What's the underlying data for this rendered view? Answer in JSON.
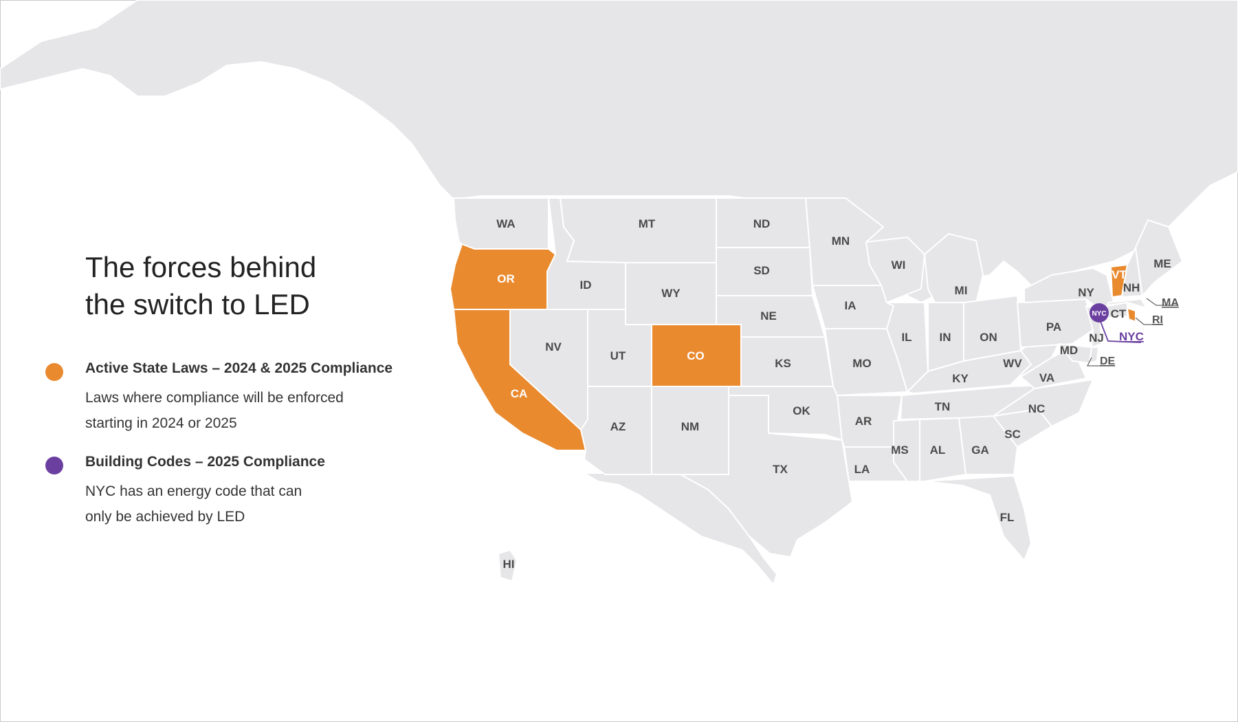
{
  "title_line1": "The forces behind",
  "title_line2": "the switch to LED",
  "legend": [
    {
      "color": "#e98a2f",
      "heading": "Active State Laws – 2024 & 2025 Compliance",
      "desc_line1": "Laws where compliance will be enforced",
      "desc_line2": "starting in 2024 or 2025"
    },
    {
      "color": "#6b3fa0",
      "heading": "Building Codes – 2025 Compliance",
      "desc_line1": "NYC has an energy code that can",
      "desc_line2": "only be achieved by LED"
    }
  ],
  "colors": {
    "land": "#e6e6e8",
    "active": "#e98a2f",
    "building_code": "#6b3fa0"
  },
  "active_states": [
    "OR",
    "CA",
    "CO",
    "VT",
    "RI"
  ],
  "state_labels": {
    "WA": "WA",
    "OR": "OR",
    "CA": "CA",
    "ID": "ID",
    "NV": "NV",
    "MT": "MT",
    "WY": "WY",
    "UT": "UT",
    "AZ": "AZ",
    "CO": "CO",
    "NM": "NM",
    "ND": "ND",
    "SD": "SD",
    "NE": "NE",
    "KS": "KS",
    "OK": "OK",
    "TX": "TX",
    "MN": "MN",
    "IA": "IA",
    "MO": "MO",
    "AR": "AR",
    "LA": "LA",
    "WI": "WI",
    "IL": "IL",
    "MI": "MI",
    "IN": "IN",
    "ON": "ON",
    "KY": "KY",
    "TN": "TN",
    "MS": "MS",
    "AL": "AL",
    "GA": "GA",
    "FL": "FL",
    "SC": "SC",
    "NC": "NC",
    "VA": "VA",
    "WV": "WV",
    "PA": "PA",
    "NY": "NY",
    "NJ": "NJ",
    "MD": "MD",
    "DE": "DE",
    "CT": "CT",
    "VT": "VT",
    "NH": "NH",
    "ME": "ME",
    "MA": "MA",
    "RI": "RI",
    "HI": "HI"
  },
  "nyc_marker": {
    "dot": "NYC",
    "label": "NYC"
  }
}
